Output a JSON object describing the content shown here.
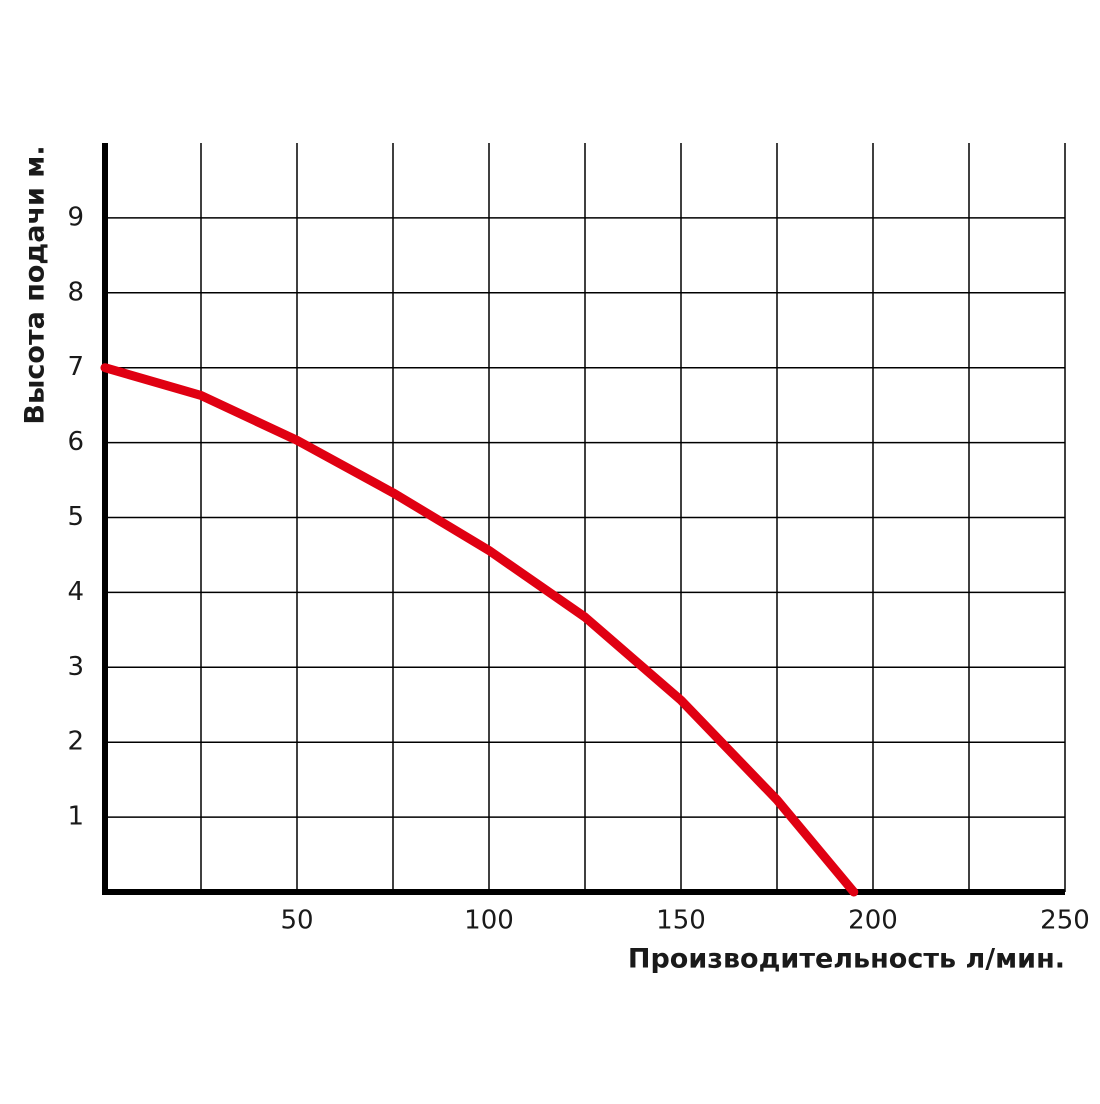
{
  "chart_data": {
    "type": "line",
    "x_label": "Производительность л/мин.",
    "y_label": "Высота подачи м.",
    "x": [
      0,
      25,
      50,
      75,
      100,
      125,
      150,
      175,
      195
    ],
    "series": [
      {
        "color": "#e00012",
        "values": [
          7,
          6.63,
          6.03,
          5.33,
          4.56,
          3.67,
          2.56,
          1.23,
          0
        ]
      }
    ],
    "xlim": [
      0,
      250
    ],
    "ylim": [
      0,
      10
    ],
    "xticks": [
      50,
      100,
      150,
      200,
      250
    ],
    "x_grid_ticks": [
      25,
      50,
      75,
      100,
      125,
      150,
      175,
      200,
      225,
      250
    ],
    "yticks": [
      1,
      2,
      3,
      4,
      5,
      6,
      7,
      8,
      9
    ],
    "grid": true
  }
}
